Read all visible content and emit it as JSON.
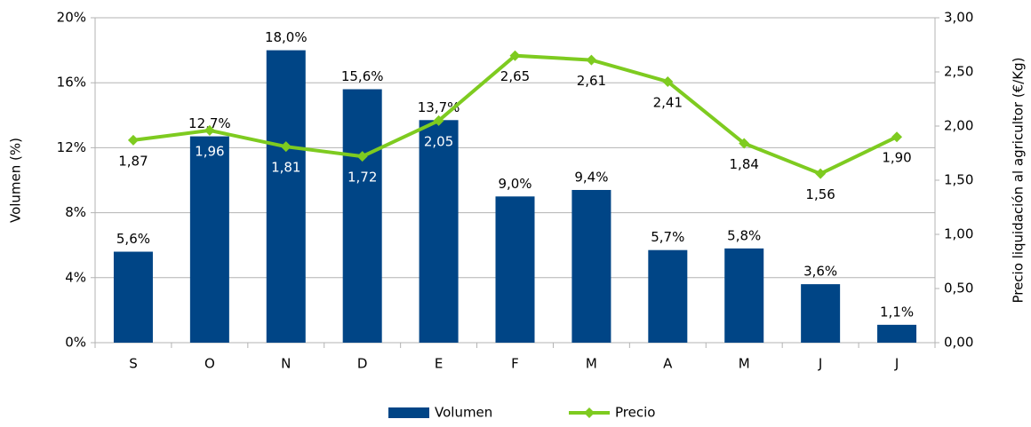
{
  "chart_data": {
    "type": "bar",
    "categories": [
      "S",
      "O",
      "N",
      "D",
      "E",
      "F",
      "M",
      "A",
      "M",
      "J",
      "J"
    ],
    "series": [
      {
        "name": "Volumen",
        "color": "#004586",
        "values": [
          5.6,
          12.7,
          18.0,
          15.6,
          13.7,
          9.0,
          9.4,
          5.7,
          5.8,
          3.6,
          1.1
        ],
        "value_labels": [
          "5,6%",
          "12,7%",
          "18,0%",
          "15,6%",
          "13,7%",
          "9,0%",
          "9,4%",
          "5,7%",
          "5,8%",
          "3,6%",
          "1,1%"
        ]
      },
      {
        "name": "Precio",
        "type": "line",
        "axis": "y2",
        "color": "#7ecb20",
        "values": [
          1.87,
          1.96,
          1.81,
          1.72,
          2.05,
          2.65,
          2.61,
          2.41,
          1.84,
          1.56,
          1.9
        ],
        "value_labels": [
          "1,87",
          "1,96",
          "1,81",
          "1,72",
          "2,05",
          "2,65",
          "2,61",
          "2,41",
          "1,84",
          "1,56",
          "1,90"
        ]
      }
    ],
    "ylabel": "Volumen (%)",
    "y2label": "Precio liquidación al agricultor (€/Kg)",
    "ylim": [
      0,
      20
    ],
    "yticks": [
      {
        "value": 0,
        "label": "0%"
      },
      {
        "value": 4,
        "label": "4%"
      },
      {
        "value": 8,
        "label": "8%"
      },
      {
        "value": 12,
        "label": "12%"
      },
      {
        "value": 16,
        "label": "16%"
      },
      {
        "value": 20,
        "label": "20%"
      }
    ],
    "y2lim": [
      0,
      3
    ],
    "y2ticks": [
      {
        "value": 0,
        "label": "0,00"
      },
      {
        "value": 0.5,
        "label": "0,50"
      },
      {
        "value": 1,
        "label": "1,00"
      },
      {
        "value": 1.5,
        "label": "1,50"
      },
      {
        "value": 2,
        "label": "2,00"
      },
      {
        "value": 2.5,
        "label": "2,50"
      },
      {
        "value": 3,
        "label": "3,00"
      }
    ],
    "grid": true,
    "legend": "bottom"
  }
}
